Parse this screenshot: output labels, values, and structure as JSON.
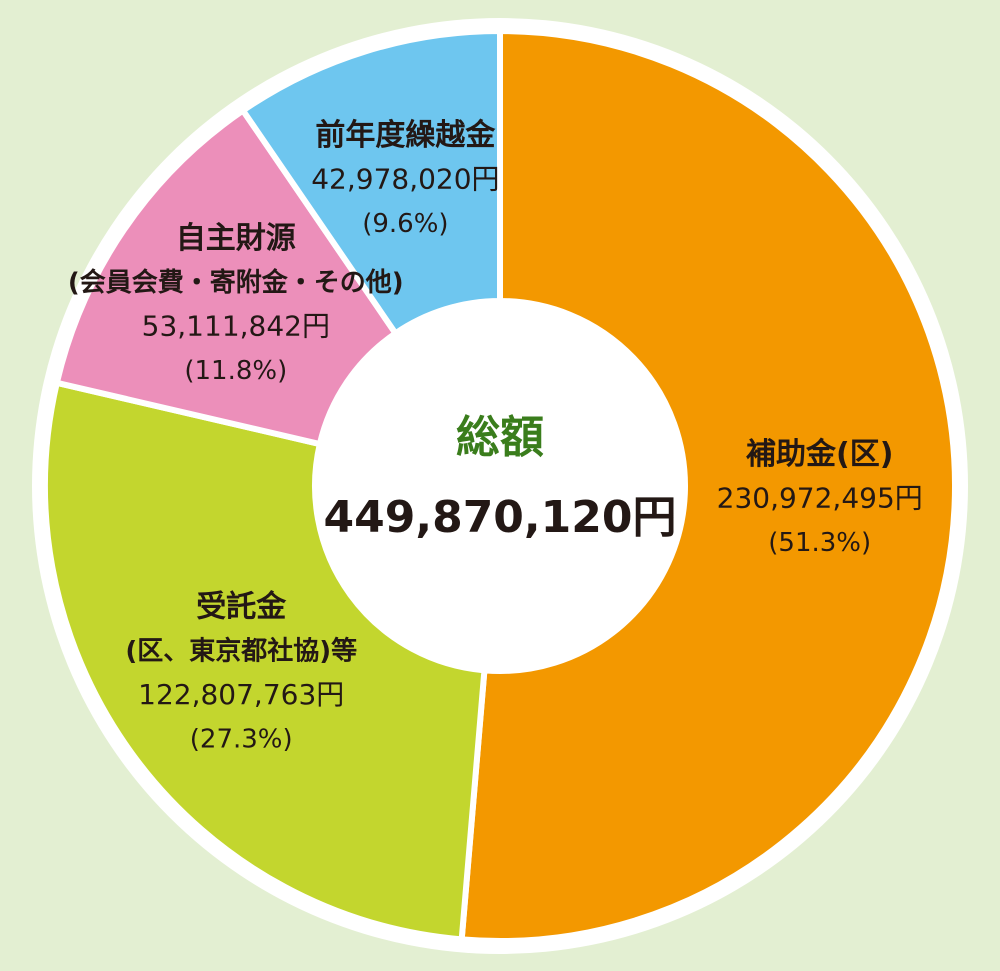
{
  "chart_data": {
    "type": "donut",
    "center_title": "総額",
    "center_value_label": "449,870,120円",
    "categories": [
      "補助金(区)",
      "受託金",
      "自主財源",
      "前年度繰越金"
    ],
    "category_notes": [
      null,
      "(区、東京都社協)等",
      "(会員会費・寄附金・その他)",
      null
    ],
    "values": [
      230972495,
      122807763,
      53111842,
      42978020
    ],
    "value_labels": [
      "230,972,495円",
      "122,807,763円",
      "53,111,842円",
      "42,978,020円"
    ],
    "percent_labels": [
      "(51.3%)",
      "(27.3%)",
      "(11.8%)",
      "(9.6%)"
    ],
    "colors": [
      "#f39800",
      "#c3d62e",
      "#ec8fba",
      "#6ec6ef"
    ]
  }
}
